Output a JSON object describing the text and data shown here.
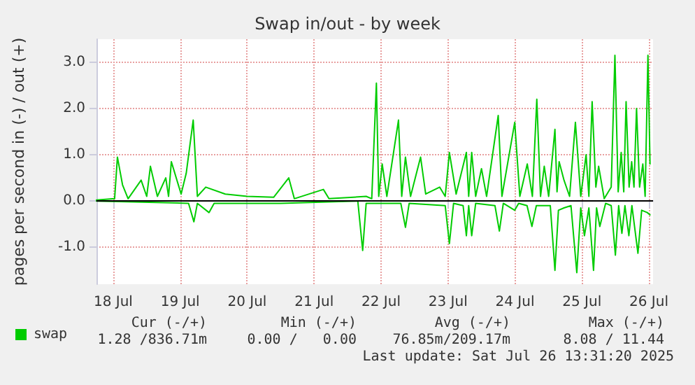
{
  "chart_data": {
    "type": "line",
    "title": "Swap in/out - by week",
    "ylabel": "pages per second in (-) / out (+)",
    "xlim": [
      "2025-07-18T06:00",
      "2025-07-26T13:30"
    ],
    "xticks": [
      {
        "value": "2025-07-18T12:00",
        "label": "18 Jul"
      },
      {
        "value": "2025-07-19T12:00",
        "label": "19 Jul"
      },
      {
        "value": "2025-07-20T12:00",
        "label": "20 Jul"
      },
      {
        "value": "2025-07-21T12:00",
        "label": "21 Jul"
      },
      {
        "value": "2025-07-22T12:00",
        "label": "22 Jul"
      },
      {
        "value": "2025-07-23T12:00",
        "label": "23 Jul"
      },
      {
        "value": "2025-07-24T12:00",
        "label": "24 Jul"
      },
      {
        "value": "2025-07-25T12:00",
        "label": "25 Jul"
      },
      {
        "value": "2025-07-26T12:00",
        "label": "26 Jul"
      }
    ],
    "ylim": [
      -1.8,
      3.5
    ],
    "yticks": [
      {
        "value": -1,
        "label": "-1.0"
      },
      {
        "value": 0,
        "label": "0.0"
      },
      {
        "value": 1,
        "label": "1.0"
      },
      {
        "value": 2,
        "label": "2.0"
      },
      {
        "value": 3,
        "label": "3.0"
      }
    ],
    "grid": true,
    "legend": "bottom left",
    "marker": "none",
    "line_style": "solid",
    "ref_lines": [
      {
        "axis": "y",
        "value": 0,
        "color": "#000000"
      }
    ],
    "series": [
      {
        "name": "swap",
        "color": "#00cc00",
        "x": [
          "2025-07-18T06:00",
          "2025-07-18T12:30",
          "2025-07-18T13:30",
          "2025-07-18T15:20",
          "2025-07-18T17:20",
          "2025-07-18T22:00",
          "2025-07-19T00:00",
          "2025-07-19T01:20",
          "2025-07-19T03:50",
          "2025-07-19T06:50",
          "2025-07-19T07:50",
          "2025-07-19T08:50",
          "2025-07-19T12:20",
          "2025-07-19T14:10",
          "2025-07-19T16:40",
          "2025-07-19T18:10",
          "2025-07-19T21:10",
          "2025-07-20T04:10",
          "2025-07-20T12:00",
          "2025-07-20T21:30",
          "2025-07-21T02:55",
          "2025-07-21T04:55",
          "2025-07-21T15:20",
          "2025-07-21T17:20",
          "2025-07-22T06:40",
          "2025-07-22T08:40",
          "2025-07-22T10:20",
          "2025-07-22T11:10",
          "2025-07-22T12:25",
          "2025-07-22T14:05",
          "2025-07-22T18:15",
          "2025-07-22T19:25",
          "2025-07-22T20:45",
          "2025-07-22T22:35",
          "2025-07-23T02:10",
          "2025-07-23T04:00",
          "2025-07-23T09:00",
          "2025-07-23T11:00",
          "2025-07-23T12:30",
          "2025-07-23T14:55",
          "2025-07-23T18:35",
          "2025-07-23T19:25",
          "2025-07-23T20:30",
          "2025-07-23T21:55",
          "2025-07-24T00:00",
          "2025-07-24T01:50",
          "2025-07-24T06:00",
          "2025-07-24T07:20",
          "2025-07-24T11:55",
          "2025-07-24T13:45",
          "2025-07-24T16:25",
          "2025-07-24T18:15",
          "2025-07-24T19:50",
          "2025-07-24T21:10",
          "2025-07-24T22:30",
          "2025-07-25T00:05",
          "2025-07-25T02:20",
          "2025-07-25T03:05",
          "2025-07-25T03:50",
          "2025-07-25T05:35",
          "2025-07-25T07:35",
          "2025-07-25T09:40",
          "2025-07-25T11:35",
          "2025-07-25T13:30",
          "2025-07-25T14:30",
          "2025-07-25T15:40",
          "2025-07-25T17:00",
          "2025-07-25T18:00",
          "2025-07-25T20:00",
          "2025-07-25T22:30",
          "2025-07-25T23:50",
          "2025-07-26T01:00",
          "2025-07-26T02:05",
          "2025-07-26T03:00",
          "2025-07-26T03:50",
          "2025-07-26T04:55",
          "2025-07-26T05:50",
          "2025-07-26T06:40",
          "2025-07-26T07:35",
          "2025-07-26T08:40",
          "2025-07-26T09:50",
          "2025-07-26T10:40",
          "2025-07-26T11:40",
          "2025-07-26T12:25"
        ],
        "values": [
          0.02,
          0.05,
          0.95,
          0.35,
          0.05,
          0.45,
          0.1,
          0.75,
          0.1,
          0.5,
          0.1,
          0.85,
          0.15,
          0.6,
          1.75,
          0.1,
          0.3,
          0.15,
          0.1,
          0.08,
          0.5,
          0.05,
          0.25,
          0.05,
          0.1,
          0.05,
          2.55,
          0.1,
          0.8,
          0.1,
          1.75,
          0.1,
          0.95,
          0.1,
          0.95,
          0.15,
          0.3,
          0.1,
          1.05,
          0.15,
          1.05,
          0.1,
          1.05,
          0.1,
          0.7,
          0.1,
          1.85,
          0.1,
          1.7,
          0.1,
          0.8,
          0.1,
          2.2,
          0.1,
          0.75,
          0.1,
          1.55,
          0.2,
          0.85,
          0.45,
          0.1,
          1.7,
          0.1,
          1.0,
          0.1,
          2.15,
          0.3,
          0.75,
          0.05,
          0.3,
          3.15,
          0.2,
          1.05,
          0.2,
          2.15,
          0.3,
          0.85,
          0.3,
          2.0,
          0.3,
          0.8,
          0.1,
          3.15,
          0.8
        ]
      },
      {
        "color": "#00cc00",
        "x": [
          "2025-07-18T06:00",
          "2025-07-19T15:00",
          "2025-07-19T16:55",
          "2025-07-19T18:10",
          "2025-07-19T22:20",
          "2025-07-20T00:10",
          "2025-07-21T00:00",
          "2025-07-22T03:40",
          "2025-07-22T05:25",
          "2025-07-22T06:40",
          "2025-07-22T19:05",
          "2025-07-22T20:45",
          "2025-07-22T22:05",
          "2025-07-23T11:00",
          "2025-07-23T12:30",
          "2025-07-23T14:00",
          "2025-07-23T17:25",
          "2025-07-23T18:35",
          "2025-07-23T19:25",
          "2025-07-23T20:30",
          "2025-07-23T21:55",
          "2025-07-24T04:50",
          "2025-07-24T06:25",
          "2025-07-24T07:50",
          "2025-07-24T11:55",
          "2025-07-24T13:20",
          "2025-07-24T16:20",
          "2025-07-24T18:05",
          "2025-07-24T19:40",
          "2025-07-25T00:40",
          "2025-07-25T02:20",
          "2025-07-25T03:35",
          "2025-07-25T05:35",
          "2025-07-25T08:05",
          "2025-07-25T10:10",
          "2025-07-25T11:35",
          "2025-07-25T12:55",
          "2025-07-25T14:30",
          "2025-07-25T16:10",
          "2025-07-25T17:15",
          "2025-07-25T18:25",
          "2025-07-25T20:30",
          "2025-07-25T22:30",
          "2025-07-26T00:00",
          "2025-07-26T01:10",
          "2025-07-26T02:20",
          "2025-07-26T03:25",
          "2025-07-26T04:50",
          "2025-07-26T05:55",
          "2025-07-26T08:05",
          "2025-07-26T09:25",
          "2025-07-26T11:25",
          "2025-07-26T12:25"
        ],
        "values": [
          0,
          -0.05,
          -0.45,
          -0.05,
          -0.25,
          -0.05,
          -0.05,
          0,
          -1.07,
          -0.05,
          -0.05,
          -0.57,
          -0.05,
          -0.1,
          -0.92,
          -0.05,
          -0.1,
          -0.75,
          -0.1,
          -0.75,
          -0.05,
          -0.1,
          -0.65,
          -0.05,
          -0.2,
          -0.05,
          -0.1,
          -0.55,
          -0.1,
          -0.1,
          -1.5,
          -0.2,
          -0.15,
          -0.1,
          -1.55,
          -0.15,
          -0.75,
          -0.15,
          -1.5,
          -0.15,
          -0.55,
          -0.05,
          -0.1,
          -1.17,
          -0.1,
          -0.7,
          -0.1,
          -0.75,
          -0.1,
          -1.13,
          -0.2,
          -0.25,
          -0.3
        ]
      }
    ],
    "annotations": [
      "Cur (-/+)",
      "1.28 /836.71m",
      "Min (-/+)",
      "0.00 /   0.00",
      "Avg (-/+)",
      "76.85m/209.17m",
      "Max (-/+)",
      "8.08 / 11.44",
      "Last update: Sat Jul 26 13:31:20 2025"
    ]
  }
}
